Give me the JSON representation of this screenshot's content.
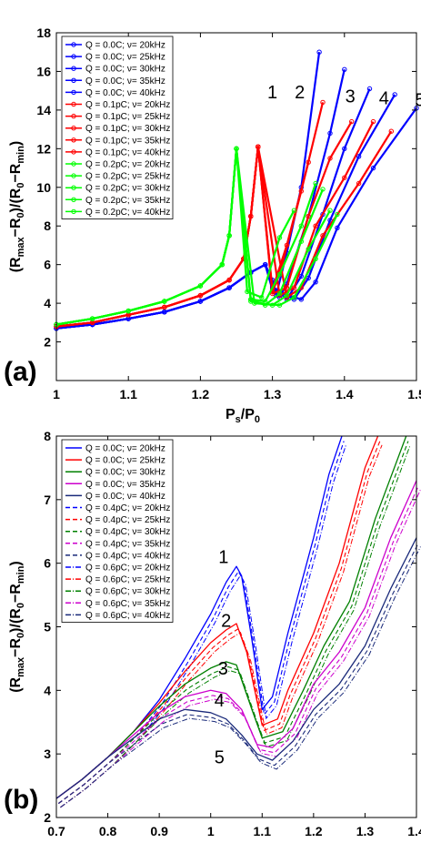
{
  "chart_data": [
    {
      "panel_label": "(a)",
      "type": "line",
      "xlabel_main": "P",
      "xlabel_sub1": "s",
      "xlabel_mid": "/P",
      "xlabel_sub2": "0",
      "ylabel": "(R_max - R_0)/(R_0 - R_min)",
      "xlim": [
        1.0,
        1.5
      ],
      "ylim": [
        0,
        18
      ],
      "xticks": [
        "1",
        "1.1",
        "1.2",
        "1.3",
        "1.4",
        "1.5"
      ],
      "yticks": [
        "2",
        "4",
        "6",
        "8",
        "10",
        "12",
        "14",
        "16",
        "18"
      ],
      "legend_position": "top-left",
      "legend_entries": [
        "Q = 0.0C; ν= 20kHz",
        "Q = 0.0C; ν= 25kHz",
        "Q = 0.0C; ν= 30kHz",
        "Q = 0.0C; ν= 35kHz",
        "Q = 0.0C; ν= 40kHz",
        "Q = 0.1pC; ν= 20kHz",
        "Q = 0.1pC; ν= 25kHz",
        "Q = 0.1pC; ν= 30kHz",
        "Q = 0.1pC; ν= 35kHz",
        "Q = 0.1pC; ν= 40kHz",
        "Q = 0.2pC; ν= 20kHz",
        "Q = 0.2pC; ν= 25kHz",
        "Q = 0.2pC; ν= 30kHz",
        "Q = 0.2pC; ν= 35kHz",
        "Q = 0.2pC; ν= 40kHz"
      ],
      "annotations": [
        {
          "text": "1",
          "x": 1.3,
          "y": 14.6
        },
        {
          "text": "2",
          "x": 1.338,
          "y": 14.6
        },
        {
          "text": "3",
          "x": 1.408,
          "y": 14.4
        },
        {
          "text": "4",
          "x": 1.455,
          "y": 14.3
        },
        {
          "text": "5",
          "x": 1.505,
          "y": 14.2
        }
      ],
      "series": [
        {
          "group": "Q = 0.0C",
          "color": "#0000ff",
          "x": [
            1.0,
            1.05,
            1.1,
            1.15,
            1.2,
            1.24,
            1.27,
            1.29,
            1.3,
            1.305,
            1.32,
            1.34,
            1.365
          ],
          "y": [
            2.7,
            2.9,
            3.2,
            3.55,
            4.1,
            4.8,
            5.6,
            6.0,
            5.2,
            4.4,
            6.6,
            10.0,
            17.0
          ]
        },
        {
          "group": "Q = 0.0C",
          "color": "#0000ff",
          "x": [
            1.0,
            1.05,
            1.1,
            1.15,
            1.2,
            1.24,
            1.27,
            1.29,
            1.3,
            1.31,
            1.32,
            1.35,
            1.38,
            1.4
          ],
          "y": [
            2.7,
            2.9,
            3.2,
            3.55,
            4.1,
            4.8,
            5.6,
            6.0,
            5.0,
            4.3,
            5.0,
            8.5,
            12.8,
            16.1
          ]
        },
        {
          "group": "Q = 0.0C",
          "color": "#0000ff",
          "x": [
            1.0,
            1.05,
            1.1,
            1.15,
            1.2,
            1.24,
            1.27,
            1.29,
            1.3,
            1.32,
            1.34,
            1.37,
            1.4,
            1.435
          ],
          "y": [
            2.7,
            2.9,
            3.2,
            3.55,
            4.1,
            4.8,
            5.6,
            6.0,
            4.9,
            4.2,
            5.4,
            8.6,
            12.0,
            15.1
          ]
        },
        {
          "group": "Q = 0.0C",
          "color": "#0000ff",
          "x": [
            1.0,
            1.05,
            1.1,
            1.15,
            1.2,
            1.24,
            1.27,
            1.29,
            1.3,
            1.33,
            1.35,
            1.38,
            1.42,
            1.47
          ],
          "y": [
            2.7,
            2.9,
            3.2,
            3.55,
            4.1,
            4.8,
            5.6,
            6.0,
            4.8,
            4.2,
            5.3,
            8.3,
            11.6,
            14.8
          ]
        },
        {
          "group": "Q = 0.0C",
          "color": "#0000ff",
          "x": [
            1.0,
            1.05,
            1.1,
            1.15,
            1.2,
            1.24,
            1.27,
            1.29,
            1.3,
            1.34,
            1.36,
            1.39,
            1.44,
            1.5
          ],
          "y": [
            2.7,
            2.9,
            3.2,
            3.55,
            4.1,
            4.8,
            5.6,
            6.0,
            4.7,
            4.2,
            5.1,
            7.9,
            11.0,
            14.1
          ]
        },
        {
          "group": "Q = 0.1pC",
          "color": "#ff0000",
          "x": [
            1.0,
            1.05,
            1.1,
            1.15,
            1.2,
            1.24,
            1.26,
            1.27,
            1.28,
            1.3,
            1.32,
            1.35
          ],
          "y": [
            2.8,
            3.0,
            3.4,
            3.8,
            4.4,
            5.2,
            6.3,
            8.5,
            12.1,
            4.7,
            7.0,
            11.3
          ]
        },
        {
          "group": "Q = 0.1pC",
          "color": "#ff0000",
          "x": [
            1.0,
            1.05,
            1.1,
            1.15,
            1.2,
            1.24,
            1.26,
            1.27,
            1.28,
            1.3,
            1.31,
            1.34,
            1.37
          ],
          "y": [
            2.8,
            3.0,
            3.4,
            3.8,
            4.4,
            5.2,
            6.3,
            8.5,
            12.1,
            4.6,
            5.5,
            9.8,
            14.4
          ]
        },
        {
          "group": "Q = 0.1pC",
          "color": "#ff0000",
          "x": [
            1.0,
            1.05,
            1.1,
            1.15,
            1.2,
            1.24,
            1.26,
            1.27,
            1.28,
            1.3,
            1.32,
            1.35,
            1.38,
            1.41
          ],
          "y": [
            2.8,
            3.0,
            3.4,
            3.8,
            4.4,
            5.2,
            6.3,
            8.5,
            12.1,
            4.5,
            4.8,
            8.5,
            11.5,
            13.4
          ]
        },
        {
          "group": "Q = 0.1pC",
          "color": "#ff0000",
          "x": [
            1.0,
            1.05,
            1.1,
            1.15,
            1.2,
            1.24,
            1.26,
            1.27,
            1.28,
            1.31,
            1.33,
            1.36,
            1.4,
            1.44
          ],
          "y": [
            2.8,
            3.0,
            3.4,
            3.8,
            4.4,
            5.2,
            6.3,
            8.5,
            12.1,
            4.4,
            4.8,
            8.0,
            10.5,
            13.4
          ]
        },
        {
          "group": "Q = 0.1pC",
          "color": "#ff0000",
          "x": [
            1.0,
            1.05,
            1.1,
            1.15,
            1.2,
            1.24,
            1.26,
            1.27,
            1.28,
            1.32,
            1.34,
            1.37,
            1.42,
            1.465
          ],
          "y": [
            2.8,
            3.0,
            3.4,
            3.8,
            4.4,
            5.2,
            6.3,
            8.5,
            12.1,
            4.3,
            4.8,
            7.5,
            10.2,
            12.9
          ]
        },
        {
          "group": "Q = 0.2pC",
          "color": "#00ff00",
          "x": [
            1.0,
            1.05,
            1.1,
            1.15,
            1.2,
            1.23,
            1.24,
            1.25,
            1.265,
            1.285,
            1.31,
            1.33
          ],
          "y": [
            2.9,
            3.2,
            3.6,
            4.1,
            4.9,
            6.0,
            7.5,
            12.0,
            4.6,
            4.3,
            7.4,
            8.8
          ]
        },
        {
          "group": "Q = 0.2pC",
          "color": "#00ff00",
          "x": [
            1.0,
            1.05,
            1.1,
            1.15,
            1.2,
            1.23,
            1.24,
            1.25,
            1.27,
            1.29,
            1.31,
            1.34,
            1.36
          ],
          "y": [
            2.9,
            3.2,
            3.6,
            4.1,
            4.9,
            6.0,
            7.5,
            12.0,
            4.2,
            4.1,
            5.5,
            8.0,
            10.2
          ]
        },
        {
          "group": "Q = 0.2pC",
          "color": "#00ff00",
          "x": [
            1.0,
            1.05,
            1.1,
            1.15,
            1.2,
            1.23,
            1.24,
            1.25,
            1.27,
            1.29,
            1.31,
            1.34,
            1.37
          ],
          "y": [
            2.9,
            3.2,
            3.6,
            4.1,
            4.9,
            6.0,
            7.5,
            12.0,
            4.2,
            3.9,
            4.5,
            7.2,
            9.9
          ]
        },
        {
          "group": "Q = 0.2pC",
          "color": "#00ff00",
          "x": [
            1.0,
            1.05,
            1.1,
            1.15,
            1.2,
            1.23,
            1.24,
            1.25,
            1.27,
            1.3,
            1.32,
            1.35,
            1.38
          ],
          "y": [
            2.9,
            3.2,
            3.6,
            4.1,
            4.9,
            6.0,
            7.5,
            12.0,
            4.1,
            3.9,
            4.4,
            6.8,
            8.8
          ]
        },
        {
          "group": "Q = 0.2pC",
          "color": "#00ff00",
          "x": [
            1.0,
            1.05,
            1.1,
            1.15,
            1.2,
            1.23,
            1.24,
            1.25,
            1.275,
            1.31,
            1.33,
            1.36,
            1.39
          ],
          "y": [
            2.9,
            3.2,
            3.6,
            4.1,
            4.9,
            6.0,
            7.5,
            12.0,
            4.0,
            3.9,
            4.3,
            6.3,
            8.6
          ]
        }
      ]
    },
    {
      "panel_label": "(b)",
      "type": "line",
      "xlabel_main": "P",
      "xlabel_sub1": "s",
      "xlabel_mid": "/P",
      "xlabel_sub2": "0",
      "ylabel": "(R_max - R_0)/(R_0 - R_min)",
      "xlim": [
        0.7,
        1.4
      ],
      "ylim": [
        2,
        8
      ],
      "xticks": [
        "0.7",
        "0.8",
        "0.9",
        "1",
        "1.1",
        "1.2",
        "1.3",
        "1.4"
      ],
      "yticks": [
        "2",
        "3",
        "4",
        "5",
        "6",
        "7",
        "8"
      ],
      "legend_position": "top-left",
      "legend_entries": [
        "Q = 0.0C; ν= 20kHz",
        "Q = 0.0C; ν= 25kHz",
        "Q = 0.0C; ν= 30kHz",
        "Q = 0.0C; ν= 35kHz",
        "Q = 0.0C; ν= 40kHz",
        "Q = 0.4pC; ν= 20kHz",
        "Q = 0.4pC; ν= 25kHz",
        "Q = 0.4pC; ν= 30kHz",
        "Q = 0.4pC; ν= 35kHz",
        "Q = 0.4pC; ν= 40kHz",
        "Q = 0.6pC; ν= 20kHz",
        "Q = 0.6pC; ν= 25kHz",
        "Q = 0.6pC; ν= 30kHz",
        "Q = 0.6pC; ν= 35kHz",
        "Q = 0.6pC; ν= 40kHz"
      ],
      "annotations": [
        {
          "text": "1",
          "x": 1.025,
          "y": 6.0
        },
        {
          "text": "2",
          "x": 1.03,
          "y": 5.0
        },
        {
          "text": "3",
          "x": 1.024,
          "y": 4.25
        },
        {
          "text": "4",
          "x": 1.017,
          "y": 3.75
        },
        {
          "text": "5",
          "x": 1.017,
          "y": 2.85
        }
      ],
      "series": [
        {
          "group": "Q = 0.0C",
          "freq": "20kHz",
          "color": "#0000ff",
          "x": [
            0.7,
            0.75,
            0.8,
            0.85,
            0.9,
            0.95,
            1.0,
            1.03,
            1.05,
            1.06,
            1.08,
            1.1,
            1.12,
            1.15,
            1.2,
            1.23,
            1.255
          ],
          "y": [
            2.3,
            2.6,
            2.95,
            3.35,
            3.85,
            4.5,
            5.2,
            5.7,
            5.95,
            5.8,
            4.8,
            3.7,
            3.9,
            4.9,
            6.4,
            7.4,
            8.0
          ]
        },
        {
          "group": "Q = 0.0C",
          "freq": "25kHz",
          "color": "#ff0000",
          "x": [
            0.7,
            0.75,
            0.8,
            0.85,
            0.9,
            0.95,
            1.0,
            1.03,
            1.05,
            1.07,
            1.1,
            1.13,
            1.15,
            1.2,
            1.25,
            1.3,
            1.325
          ],
          "y": [
            2.3,
            2.6,
            2.95,
            3.35,
            3.8,
            4.3,
            4.75,
            4.95,
            5.05,
            4.6,
            3.45,
            3.55,
            4.0,
            4.9,
            6.0,
            7.5,
            8.0
          ]
        },
        {
          "group": "Q = 0.0C",
          "freq": "30kHz",
          "color": "#008000",
          "x": [
            0.7,
            0.75,
            0.8,
            0.85,
            0.9,
            0.95,
            1.0,
            1.03,
            1.05,
            1.08,
            1.1,
            1.14,
            1.18,
            1.22,
            1.27,
            1.32,
            1.38
          ],
          "y": [
            2.3,
            2.6,
            2.95,
            3.35,
            3.75,
            4.1,
            4.35,
            4.45,
            4.4,
            3.7,
            3.25,
            3.35,
            4.0,
            4.7,
            5.4,
            6.7,
            8.0
          ]
        },
        {
          "group": "Q = 0.0C",
          "freq": "35kHz",
          "color": "#cc00cc",
          "x": [
            0.7,
            0.75,
            0.8,
            0.85,
            0.9,
            0.95,
            1.0,
            1.03,
            1.06,
            1.09,
            1.12,
            1.16,
            1.2,
            1.25,
            1.3,
            1.35,
            1.4
          ],
          "y": [
            2.3,
            2.6,
            2.95,
            3.3,
            3.65,
            3.9,
            4.0,
            3.95,
            3.7,
            3.15,
            3.1,
            3.4,
            4.1,
            4.6,
            5.3,
            6.4,
            7.3
          ]
        },
        {
          "group": "Q = 0.0C",
          "freq": "40kHz",
          "color": "#1a2a7a",
          "x": [
            0.7,
            0.75,
            0.8,
            0.85,
            0.9,
            0.95,
            1.0,
            1.03,
            1.06,
            1.09,
            1.12,
            1.16,
            1.2,
            1.25,
            1.3,
            1.35,
            1.4
          ],
          "y": [
            2.3,
            2.6,
            2.95,
            3.25,
            3.55,
            3.7,
            3.65,
            3.55,
            3.3,
            3.0,
            2.9,
            3.2,
            3.7,
            4.1,
            4.7,
            5.6,
            6.4
          ]
        }
      ]
    }
  ]
}
